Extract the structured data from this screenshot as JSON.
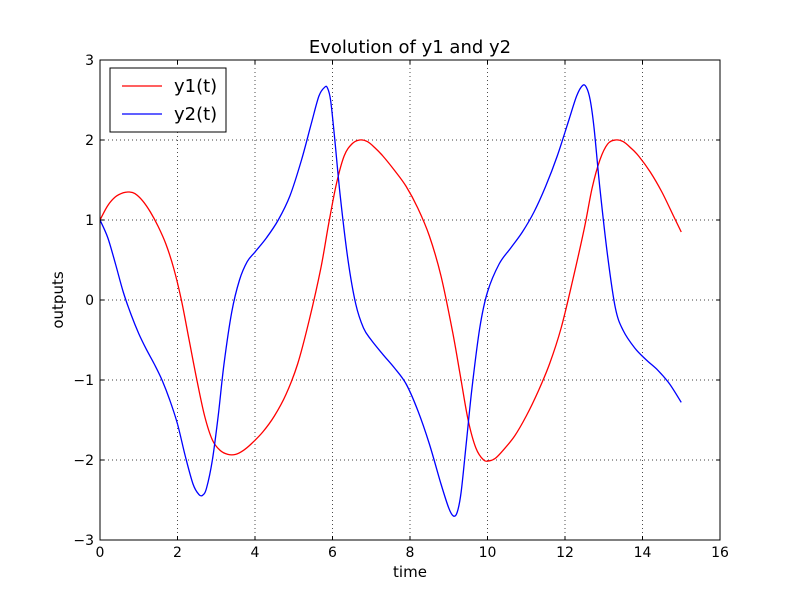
{
  "chart_data": {
    "type": "line",
    "title": "Evolution of y1 and y2",
    "xlabel": "time",
    "ylabel": "outputs",
    "xlim": [
      0,
      16
    ],
    "ylim": [
      -3,
      3
    ],
    "xticks": [
      0,
      2,
      4,
      6,
      8,
      10,
      12,
      14,
      16
    ],
    "yticks": [
      -3,
      -2,
      -1,
      0,
      1,
      2,
      3
    ],
    "xtick_labels": [
      "0",
      "2",
      "4",
      "6",
      "8",
      "10",
      "12",
      "14",
      "16"
    ],
    "ytick_labels": [
      "−3",
      "−2",
      "−1",
      "0",
      "1",
      "2",
      "3"
    ],
    "grid": true,
    "legend_position": "top-left",
    "series": [
      {
        "name": "y1(t)",
        "color": "#ff0000",
        "x": [
          0,
          0.2,
          0.4,
          0.6,
          0.75,
          0.9,
          1.1,
          1.3,
          1.5,
          1.7,
          1.9,
          2.1,
          2.3,
          2.5,
          2.7,
          2.9,
          3.1,
          3.3,
          3.5,
          3.7,
          3.9,
          4.2,
          4.5,
          4.8,
          5.1,
          5.4,
          5.7,
          5.9,
          6.1,
          6.3,
          6.5,
          6.7,
          6.9,
          7.1,
          7.3,
          7.6,
          7.9,
          8.2,
          8.5,
          8.8,
          9.1,
          9.3,
          9.5,
          9.7,
          9.9,
          10.05,
          10.2,
          10.4,
          10.7,
          11.0,
          11.3,
          11.6,
          11.9,
          12.2,
          12.5,
          12.7,
          12.9,
          13.1,
          13.3,
          13.5,
          13.7,
          13.9,
          14.2,
          14.5,
          14.8,
          15.0
        ],
        "y": [
          1.0,
          1.18,
          1.29,
          1.34,
          1.35,
          1.33,
          1.24,
          1.1,
          0.92,
          0.7,
          0.4,
          0.0,
          -0.5,
          -1.0,
          -1.45,
          -1.75,
          -1.88,
          -1.93,
          -1.93,
          -1.88,
          -1.8,
          -1.65,
          -1.45,
          -1.18,
          -0.8,
          -0.25,
          0.4,
          0.95,
          1.45,
          1.8,
          1.95,
          2.0,
          1.98,
          1.9,
          1.8,
          1.62,
          1.42,
          1.15,
          0.8,
          0.3,
          -0.4,
          -0.95,
          -1.5,
          -1.85,
          -2.0,
          -2.01,
          -1.98,
          -1.88,
          -1.7,
          -1.45,
          -1.15,
          -0.8,
          -0.35,
          0.25,
          0.9,
          1.4,
          1.75,
          1.95,
          2.0,
          1.98,
          1.9,
          1.8,
          1.6,
          1.35,
          1.05,
          0.85
        ]
      },
      {
        "name": "y2(t)",
        "color": "#0000ff",
        "x": [
          0,
          0.2,
          0.4,
          0.6,
          0.8,
          1.0,
          1.2,
          1.4,
          1.6,
          1.8,
          2.0,
          2.2,
          2.4,
          2.55,
          2.65,
          2.75,
          2.9,
          3.05,
          3.2,
          3.4,
          3.6,
          3.8,
          4.0,
          4.3,
          4.6,
          4.9,
          5.2,
          5.45,
          5.65,
          5.8,
          5.87,
          5.95,
          6.05,
          6.2,
          6.4,
          6.6,
          6.8,
          7.0,
          7.3,
          7.6,
          7.9,
          8.2,
          8.5,
          8.8,
          9.0,
          9.12,
          9.22,
          9.32,
          9.45,
          9.6,
          9.8,
          10.0,
          10.3,
          10.6,
          10.9,
          11.2,
          11.5,
          11.8,
          12.1,
          12.3,
          12.45,
          12.55,
          12.65,
          12.75,
          12.9,
          13.1,
          13.3,
          13.5,
          13.8,
          14.1,
          14.4,
          14.7,
          15.0
        ],
        "y": [
          1.0,
          0.78,
          0.45,
          0.1,
          -0.18,
          -0.42,
          -0.62,
          -0.8,
          -1.0,
          -1.25,
          -1.55,
          -1.95,
          -2.3,
          -2.43,
          -2.44,
          -2.35,
          -2.0,
          -1.45,
          -0.8,
          -0.15,
          0.25,
          0.48,
          0.6,
          0.78,
          1.0,
          1.3,
          1.75,
          2.2,
          2.55,
          2.66,
          2.65,
          2.5,
          2.05,
          1.3,
          0.5,
          -0.05,
          -0.35,
          -0.5,
          -0.68,
          -0.85,
          -1.05,
          -1.38,
          -1.8,
          -2.3,
          -2.6,
          -2.7,
          -2.65,
          -2.4,
          -1.8,
          -1.1,
          -0.35,
          0.1,
          0.45,
          0.65,
          0.85,
          1.1,
          1.42,
          1.8,
          2.25,
          2.55,
          2.68,
          2.66,
          2.5,
          2.15,
          1.4,
          0.55,
          -0.1,
          -0.38,
          -0.6,
          -0.75,
          -0.88,
          -1.05,
          -1.28
        ]
      }
    ]
  }
}
